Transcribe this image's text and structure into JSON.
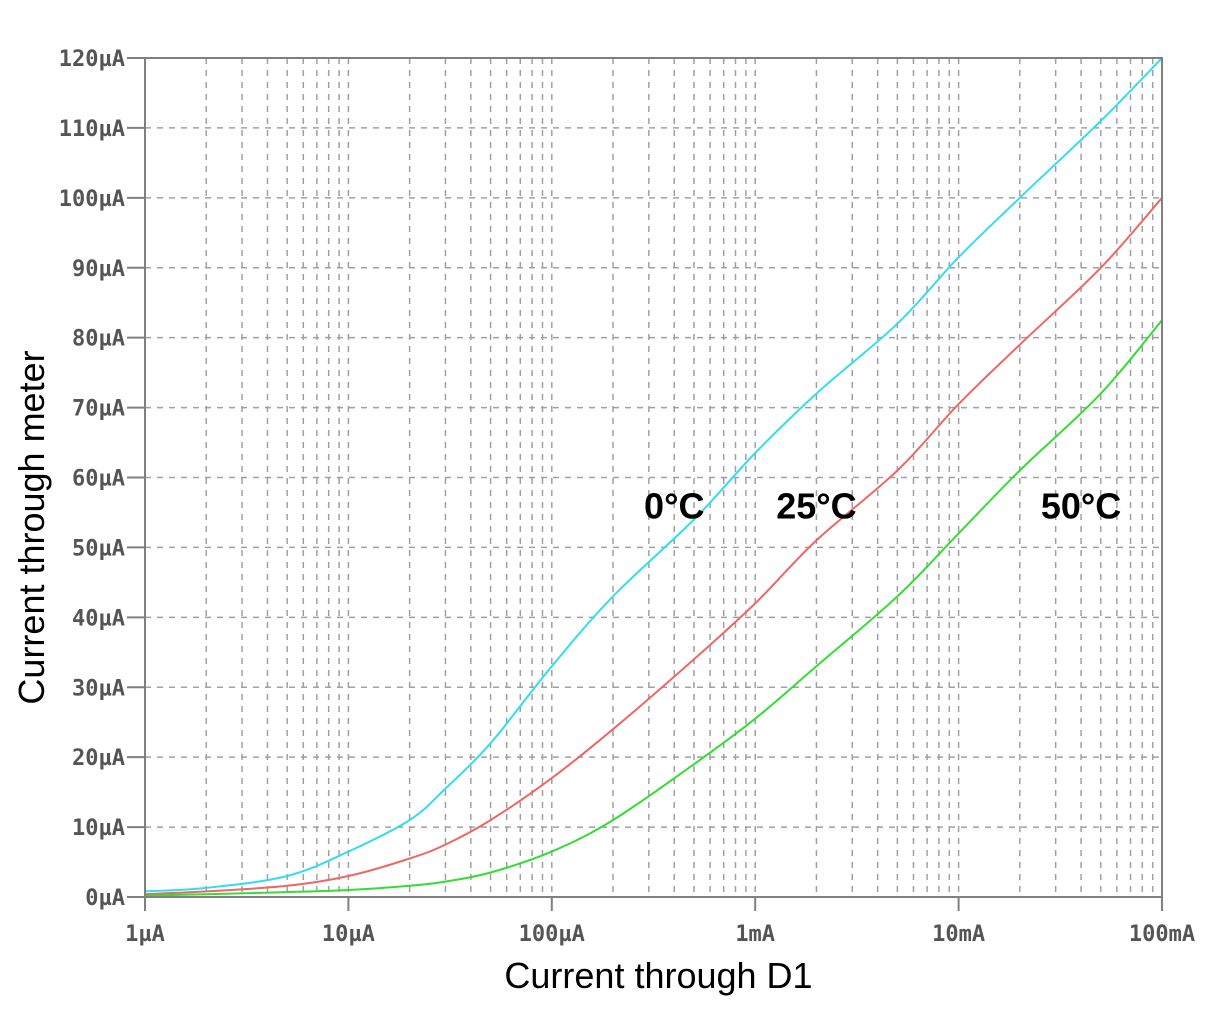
{
  "chart_data": {
    "type": "line",
    "xscale": "log",
    "xlabel": "Current through D1",
    "ylabel": "Current through meter",
    "xlim": [
      1,
      100000
    ],
    "ylim": [
      0,
      120
    ],
    "grid": true,
    "x_ticks": [
      {
        "value": 1,
        "label": "1µA"
      },
      {
        "value": 10,
        "label": "10µA"
      },
      {
        "value": 100,
        "label": "100µA"
      },
      {
        "value": 1000,
        "label": "1mA"
      },
      {
        "value": 10000,
        "label": "10mA"
      },
      {
        "value": 100000,
        "label": "100mA"
      }
    ],
    "y_ticks": [
      {
        "value": 0,
        "label": "0µA"
      },
      {
        "value": 10,
        "label": "10µA"
      },
      {
        "value": 20,
        "label": "20µA"
      },
      {
        "value": 30,
        "label": "30µA"
      },
      {
        "value": 40,
        "label": "40µA"
      },
      {
        "value": 50,
        "label": "50µA"
      },
      {
        "value": 60,
        "label": "60µA"
      },
      {
        "value": 70,
        "label": "70µA"
      },
      {
        "value": 80,
        "label": "80µA"
      },
      {
        "value": 90,
        "label": "90µA"
      },
      {
        "value": 100,
        "label": "100µA"
      },
      {
        "value": 110,
        "label": "110µA"
      },
      {
        "value": 120,
        "label": "120µA"
      }
    ],
    "series": [
      {
        "name": "0°C",
        "color": "#33ddee",
        "x": [
          1,
          2,
          5,
          10,
          20,
          30,
          50,
          100,
          200,
          500,
          1000,
          2000,
          5000,
          10000,
          20000,
          50000,
          100000
        ],
        "y": [
          0.8,
          1.3,
          3,
          6.5,
          11,
          15.5,
          22,
          33,
          43,
          54,
          63.5,
          72,
          82,
          91.5,
          100,
          111,
          120
        ]
      },
      {
        "name": "25°C",
        "color": "#ee6666",
        "x": [
          1,
          2,
          5,
          10,
          20,
          30,
          50,
          100,
          200,
          500,
          1000,
          2000,
          5000,
          10000,
          20000,
          50000,
          100000
        ],
        "y": [
          0.4,
          0.8,
          1.6,
          3,
          5.5,
          7.5,
          11,
          17,
          24,
          34,
          42,
          51,
          61,
          70.5,
          79,
          90,
          100
        ]
      },
      {
        "name": "50°C",
        "color": "#33dd33",
        "x": [
          1,
          2,
          5,
          10,
          20,
          30,
          50,
          100,
          200,
          500,
          1000,
          2000,
          5000,
          10000,
          20000,
          50000,
          100000
        ],
        "y": [
          0.2,
          0.4,
          0.7,
          1,
          1.6,
          2.2,
          3.5,
          6.5,
          11,
          19,
          25.5,
          33,
          43,
          52,
          61,
          72,
          82.5
        ]
      }
    ],
    "annotations": [
      {
        "text": "0°C",
        "series": "0°C",
        "x": 400,
        "y": 55
      },
      {
        "text": "25°C",
        "series": "25°C",
        "x": 2000,
        "y": 55
      },
      {
        "text": "50°C",
        "series": "50°C",
        "x": 40000,
        "y": 55
      }
    ]
  }
}
